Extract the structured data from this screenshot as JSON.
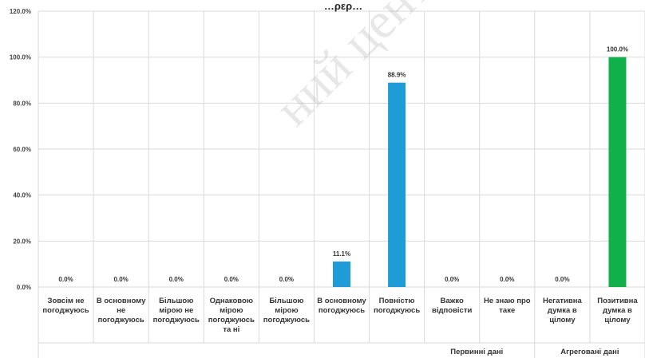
{
  "chart_data": {
    "type": "bar",
    "title": "…ρερ…",
    "categories": [
      [
        "Зовсім не",
        "погоджуюсь"
      ],
      [
        "В основному",
        "не",
        "погоджуюсь"
      ],
      [
        "Більшою",
        "мірою не",
        "погоджуюсь"
      ],
      [
        "Однаковою",
        "мірою",
        "погоджуюсь",
        "та ні"
      ],
      [
        "Більшою",
        "мірою",
        "погоджуюсь"
      ],
      [
        "В основному",
        "погоджуюсь"
      ],
      [
        "Повністю",
        "погоджуюсь"
      ],
      [
        "Важко",
        "відповісти"
      ],
      [
        "Не знаю про",
        "таке"
      ],
      [
        "Негативна",
        "думка в",
        "цілому"
      ],
      [
        "Позитивна",
        "думка в",
        "цілому"
      ]
    ],
    "values": [
      0.0,
      0.0,
      0.0,
      0.0,
      0.0,
      11.1,
      88.9,
      0.0,
      0.0,
      0.0,
      100.0
    ],
    "value_labels": [
      "0.0%",
      "0.0%",
      "0.0%",
      "0.0%",
      "0.0%",
      "11.1%",
      "88.9%",
      "0.0%",
      "0.0%",
      "0.0%",
      "100.0%"
    ],
    "bar_colors": [
      "#1f9bd7",
      "#1f9bd7",
      "#1f9bd7",
      "#1f9bd7",
      "#1f9bd7",
      "#1f9bd7",
      "#1f9bd7",
      "#1f9bd7",
      "#1f9bd7",
      "#1f9bd7",
      "#12b04a"
    ],
    "groups": [
      {
        "label": "Первинні дані",
        "span": 9
      },
      {
        "label": "Агреговані дані",
        "span": 2
      }
    ],
    "ylim": [
      0,
      120
    ],
    "yticks": [
      0,
      20,
      40,
      60,
      80,
      100,
      120
    ],
    "ytick_labels": [
      "0.0%",
      "20.0%",
      "40.0%",
      "60.0%",
      "80.0%",
      "100.0%",
      "120.0%"
    ],
    "grid": true,
    "watermark": "ний центр"
  }
}
